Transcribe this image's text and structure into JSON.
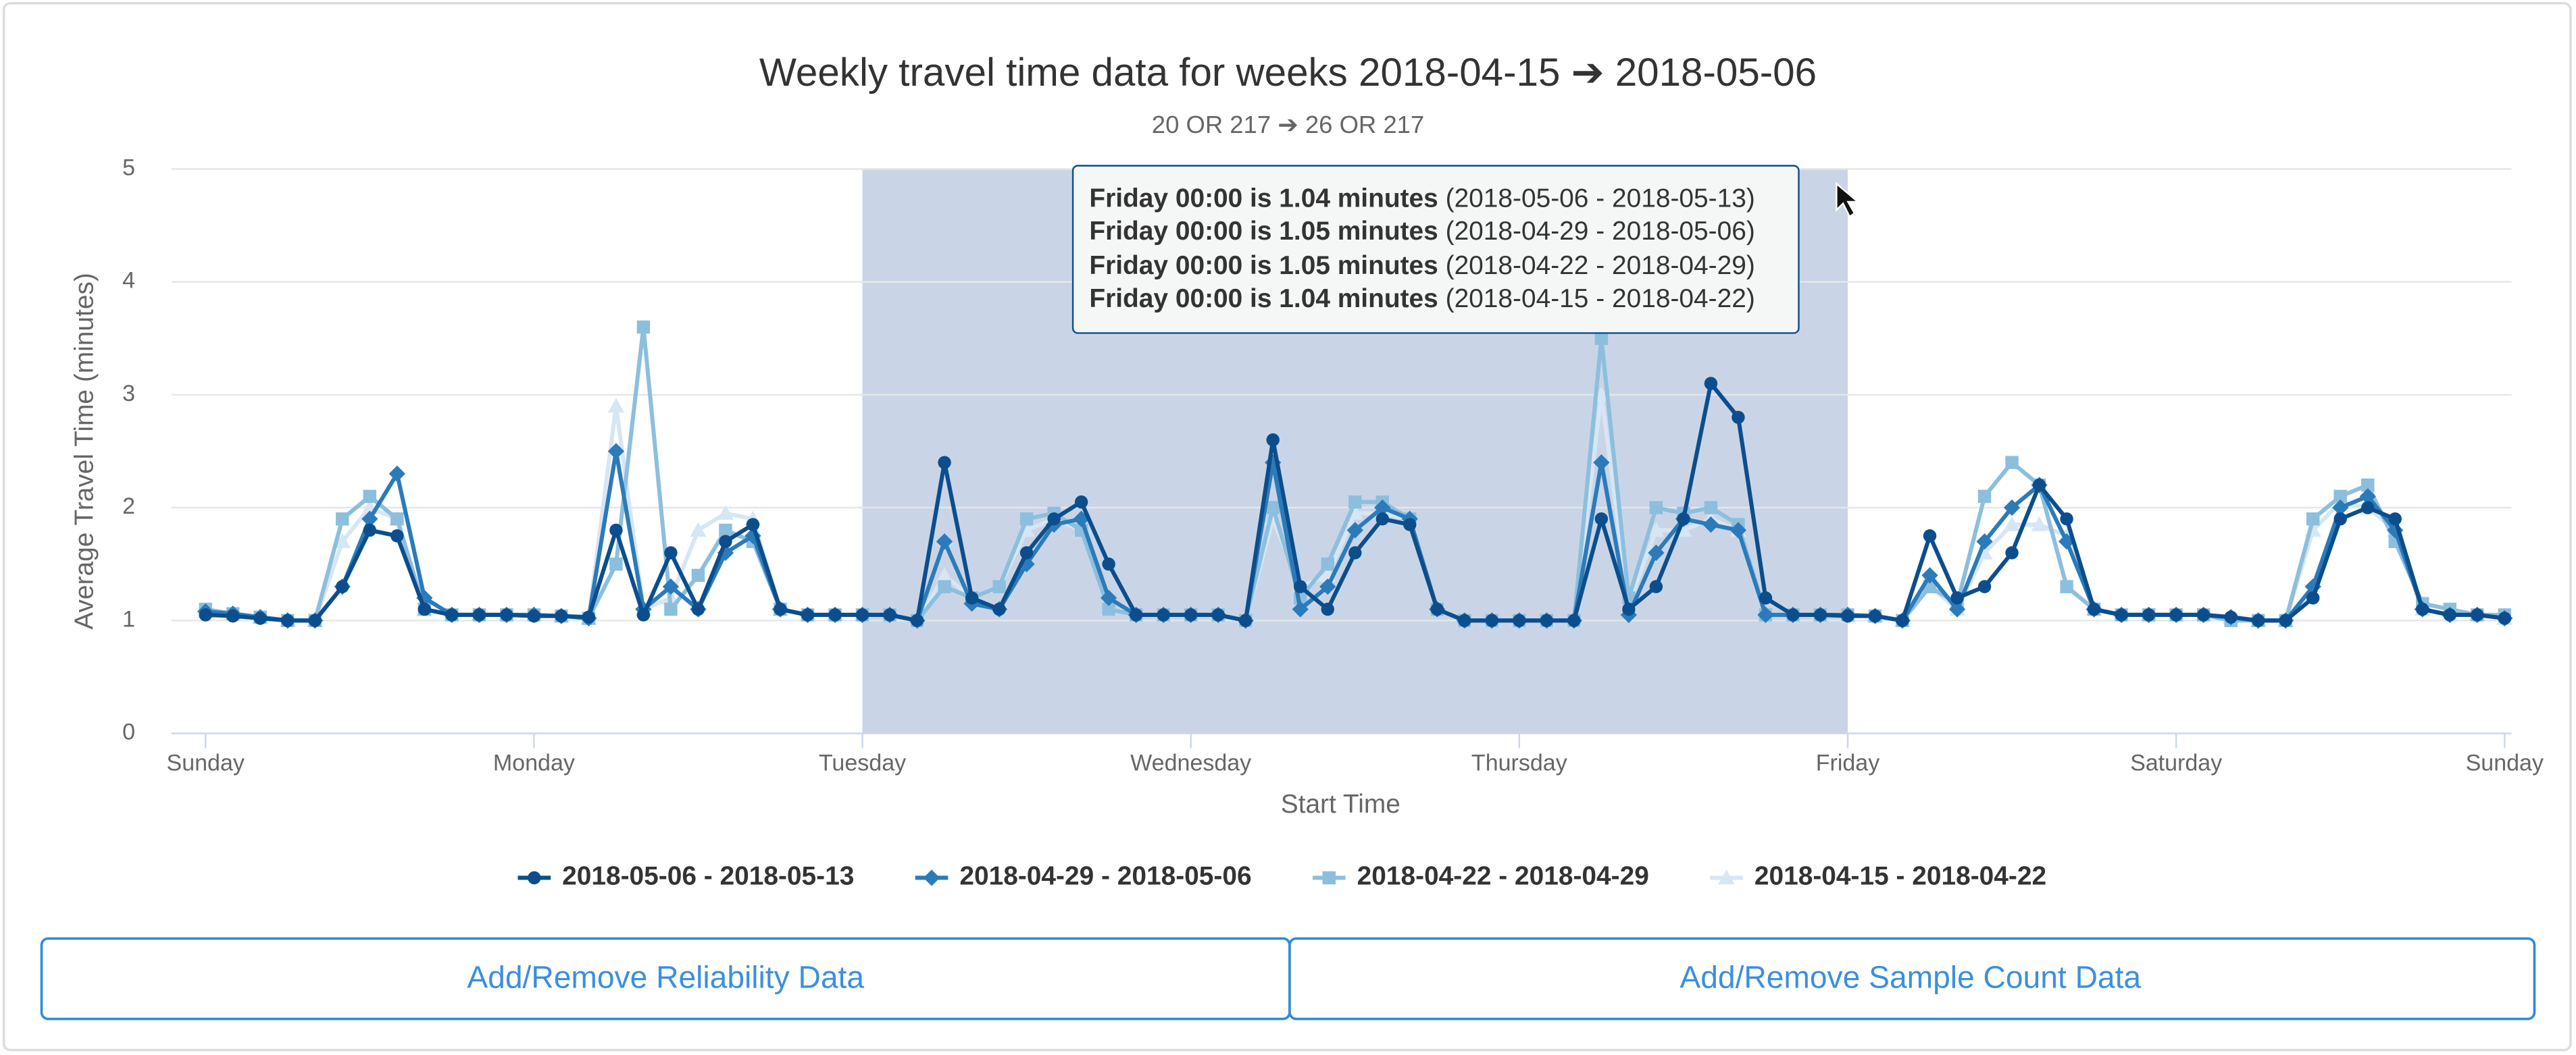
{
  "chart_data": {
    "type": "line",
    "title": "Weekly travel time data for weeks 2018-04-15 ➔ 2018-05-06",
    "subtitle": "20 OR 217 ➔ 26 OR 217",
    "y_label": "Average Travel Time (minutes)",
    "x_label": "Start Time",
    "xlim": [
      -2.5,
      168.5
    ],
    "ylim": [
      0,
      5
    ],
    "yticks": [
      0,
      1,
      2,
      3,
      4,
      5
    ],
    "xticks": [
      {
        "value": 0,
        "label": "Sunday"
      },
      {
        "value": 24,
        "label": "Monday"
      },
      {
        "value": 48,
        "label": "Tuesday"
      },
      {
        "value": 72,
        "label": "Wednesday"
      },
      {
        "value": 96,
        "label": "Thursday"
      },
      {
        "value": 120,
        "label": "Friday"
      },
      {
        "value": 144,
        "label": "Saturday"
      },
      {
        "value": 168,
        "label": "Sunday"
      }
    ],
    "grid": true,
    "plot_band": [
      48,
      120
    ],
    "x": [
      0,
      2,
      4,
      6,
      8,
      10,
      12,
      14,
      16,
      18,
      20,
      22,
      24,
      26,
      28,
      30,
      32,
      34,
      36,
      38,
      40,
      42,
      44,
      46,
      48,
      50,
      52,
      54,
      56,
      58,
      60,
      62,
      64,
      66,
      68,
      70,
      72,
      74,
      76,
      78,
      80,
      82,
      84,
      86,
      88,
      90,
      92,
      94,
      96,
      98,
      100,
      102,
      104,
      106,
      108,
      110,
      112,
      114,
      116,
      118,
      120,
      122,
      124,
      126,
      128,
      130,
      132,
      134,
      136,
      138,
      140,
      142,
      144,
      146,
      148,
      150,
      152,
      154,
      156,
      158,
      160,
      162,
      164,
      166,
      168
    ],
    "series": [
      {
        "name": "2018-05-06 - 2018-05-13",
        "color": "#0c4e8d",
        "marker": "circle",
        "values": [
          1.05,
          1.04,
          1.02,
          1.0,
          1.0,
          1.3,
          1.8,
          1.75,
          1.1,
          1.05,
          1.05,
          1.05,
          1.04,
          1.04,
          1.03,
          1.8,
          1.05,
          1.6,
          1.1,
          1.7,
          1.85,
          1.1,
          1.05,
          1.05,
          1.05,
          1.05,
          1.0,
          2.4,
          1.2,
          1.1,
          1.6,
          1.9,
          2.05,
          1.5,
          1.05,
          1.05,
          1.05,
          1.05,
          1.0,
          2.6,
          1.3,
          1.1,
          1.6,
          1.9,
          1.85,
          1.1,
          1.0,
          1.0,
          1.0,
          1.0,
          1.0,
          1.9,
          1.1,
          1.3,
          1.9,
          3.1,
          2.8,
          1.2,
          1.05,
          1.05,
          1.04,
          1.04,
          1.0,
          1.75,
          1.2,
          1.3,
          1.6,
          2.2,
          1.9,
          1.1,
          1.05,
          1.05,
          1.05,
          1.05,
          1.03,
          1.0,
          1.0,
          1.2,
          1.9,
          2.0,
          1.9,
          1.1,
          1.05,
          1.05,
          1.02
        ]
      },
      {
        "name": "2018-04-29 - 2018-05-06",
        "color": "#2b7bba",
        "marker": "diamond",
        "values": [
          1.08,
          1.06,
          1.03,
          1.0,
          1.0,
          1.3,
          1.9,
          2.3,
          1.2,
          1.05,
          1.05,
          1.05,
          1.05,
          1.04,
          1.02,
          2.5,
          1.1,
          1.3,
          1.1,
          1.6,
          1.75,
          1.1,
          1.05,
          1.05,
          1.05,
          1.05,
          1.0,
          1.7,
          1.15,
          1.1,
          1.5,
          1.85,
          1.9,
          1.2,
          1.05,
          1.05,
          1.05,
          1.05,
          1.0,
          2.4,
          1.1,
          1.3,
          1.8,
          2.0,
          1.9,
          1.1,
          1.0,
          1.0,
          1.0,
          1.0,
          1.0,
          2.4,
          1.05,
          1.6,
          1.9,
          1.85,
          1.8,
          1.05,
          1.05,
          1.05,
          1.05,
          1.04,
          1.0,
          1.4,
          1.1,
          1.7,
          2.0,
          2.2,
          1.7,
          1.1,
          1.05,
          1.05,
          1.05,
          1.05,
          1.03,
          1.0,
          1.0,
          1.3,
          2.0,
          2.1,
          1.8,
          1.1,
          1.05,
          1.05,
          1.02
        ]
      },
      {
        "name": "2018-04-22 - 2018-04-29",
        "color": "#8cbfdd",
        "marker": "square",
        "values": [
          1.1,
          1.06,
          1.03,
          1.0,
          1.0,
          1.9,
          2.1,
          1.9,
          1.1,
          1.05,
          1.05,
          1.05,
          1.05,
          1.04,
          1.02,
          1.5,
          3.6,
          1.1,
          1.4,
          1.8,
          1.7,
          1.1,
          1.05,
          1.05,
          1.05,
          1.05,
          1.0,
          1.3,
          1.2,
          1.3,
          1.9,
          1.95,
          1.8,
          1.1,
          1.05,
          1.05,
          1.05,
          1.05,
          1.0,
          2.0,
          1.2,
          1.5,
          2.05,
          2.05,
          1.9,
          1.1,
          1.0,
          1.0,
          1.0,
          1.0,
          1.0,
          3.5,
          1.2,
          2.0,
          1.95,
          2.0,
          1.85,
          1.05,
          1.05,
          1.05,
          1.05,
          1.04,
          1.0,
          1.3,
          1.15,
          2.1,
          2.4,
          2.2,
          1.3,
          1.1,
          1.05,
          1.05,
          1.05,
          1.05,
          1.0,
          1.0,
          1.0,
          1.9,
          2.1,
          2.2,
          1.7,
          1.15,
          1.1,
          1.05,
          1.05
        ]
      },
      {
        "name": "2018-04-15 - 2018-04-22",
        "color": "#d6e6f4",
        "marker": "triangle",
        "values": [
          1.08,
          1.06,
          1.03,
          1.0,
          1.0,
          1.7,
          2.0,
          1.9,
          1.1,
          1.05,
          1.05,
          1.05,
          1.05,
          1.04,
          1.02,
          2.9,
          1.1,
          1.2,
          1.8,
          1.95,
          1.9,
          1.1,
          1.05,
          1.05,
          1.05,
          1.05,
          1.0,
          1.4,
          1.2,
          1.3,
          1.8,
          1.9,
          1.8,
          1.1,
          1.05,
          1.05,
          1.05,
          1.05,
          1.0,
          1.9,
          1.3,
          1.4,
          1.95,
          1.95,
          1.9,
          1.1,
          1.0,
          1.0,
          1.0,
          1.0,
          1.0,
          3.0,
          1.15,
          1.8,
          1.8,
          1.9,
          1.8,
          1.05,
          1.05,
          1.05,
          1.04,
          1.04,
          1.0,
          1.3,
          1.1,
          1.6,
          1.85,
          1.85,
          1.75,
          1.1,
          1.05,
          1.05,
          1.05,
          1.05,
          1.03,
          1.0,
          1.0,
          1.8,
          2.05,
          2.0,
          1.8,
          1.1,
          1.05,
          1.05,
          1.02
        ]
      }
    ]
  },
  "tooltip": {
    "lines": [
      {
        "bold": "Friday 00:00 is 1.04 minutes",
        "rest": "(2018-05-06 - 2018-05-13)"
      },
      {
        "bold": "Friday 00:00 is 1.05 minutes",
        "rest": "(2018-04-29 - 2018-05-06)"
      },
      {
        "bold": "Friday 00:00 is 1.05 minutes",
        "rest": "(2018-04-22 - 2018-04-29)"
      },
      {
        "bold": "Friday 00:00 is 1.04 minutes",
        "rest": "(2018-04-15 - 2018-04-22)"
      }
    ]
  },
  "buttons": [
    "Add/Remove Reliability Data",
    "Add/Remove Sample Count Data"
  ]
}
